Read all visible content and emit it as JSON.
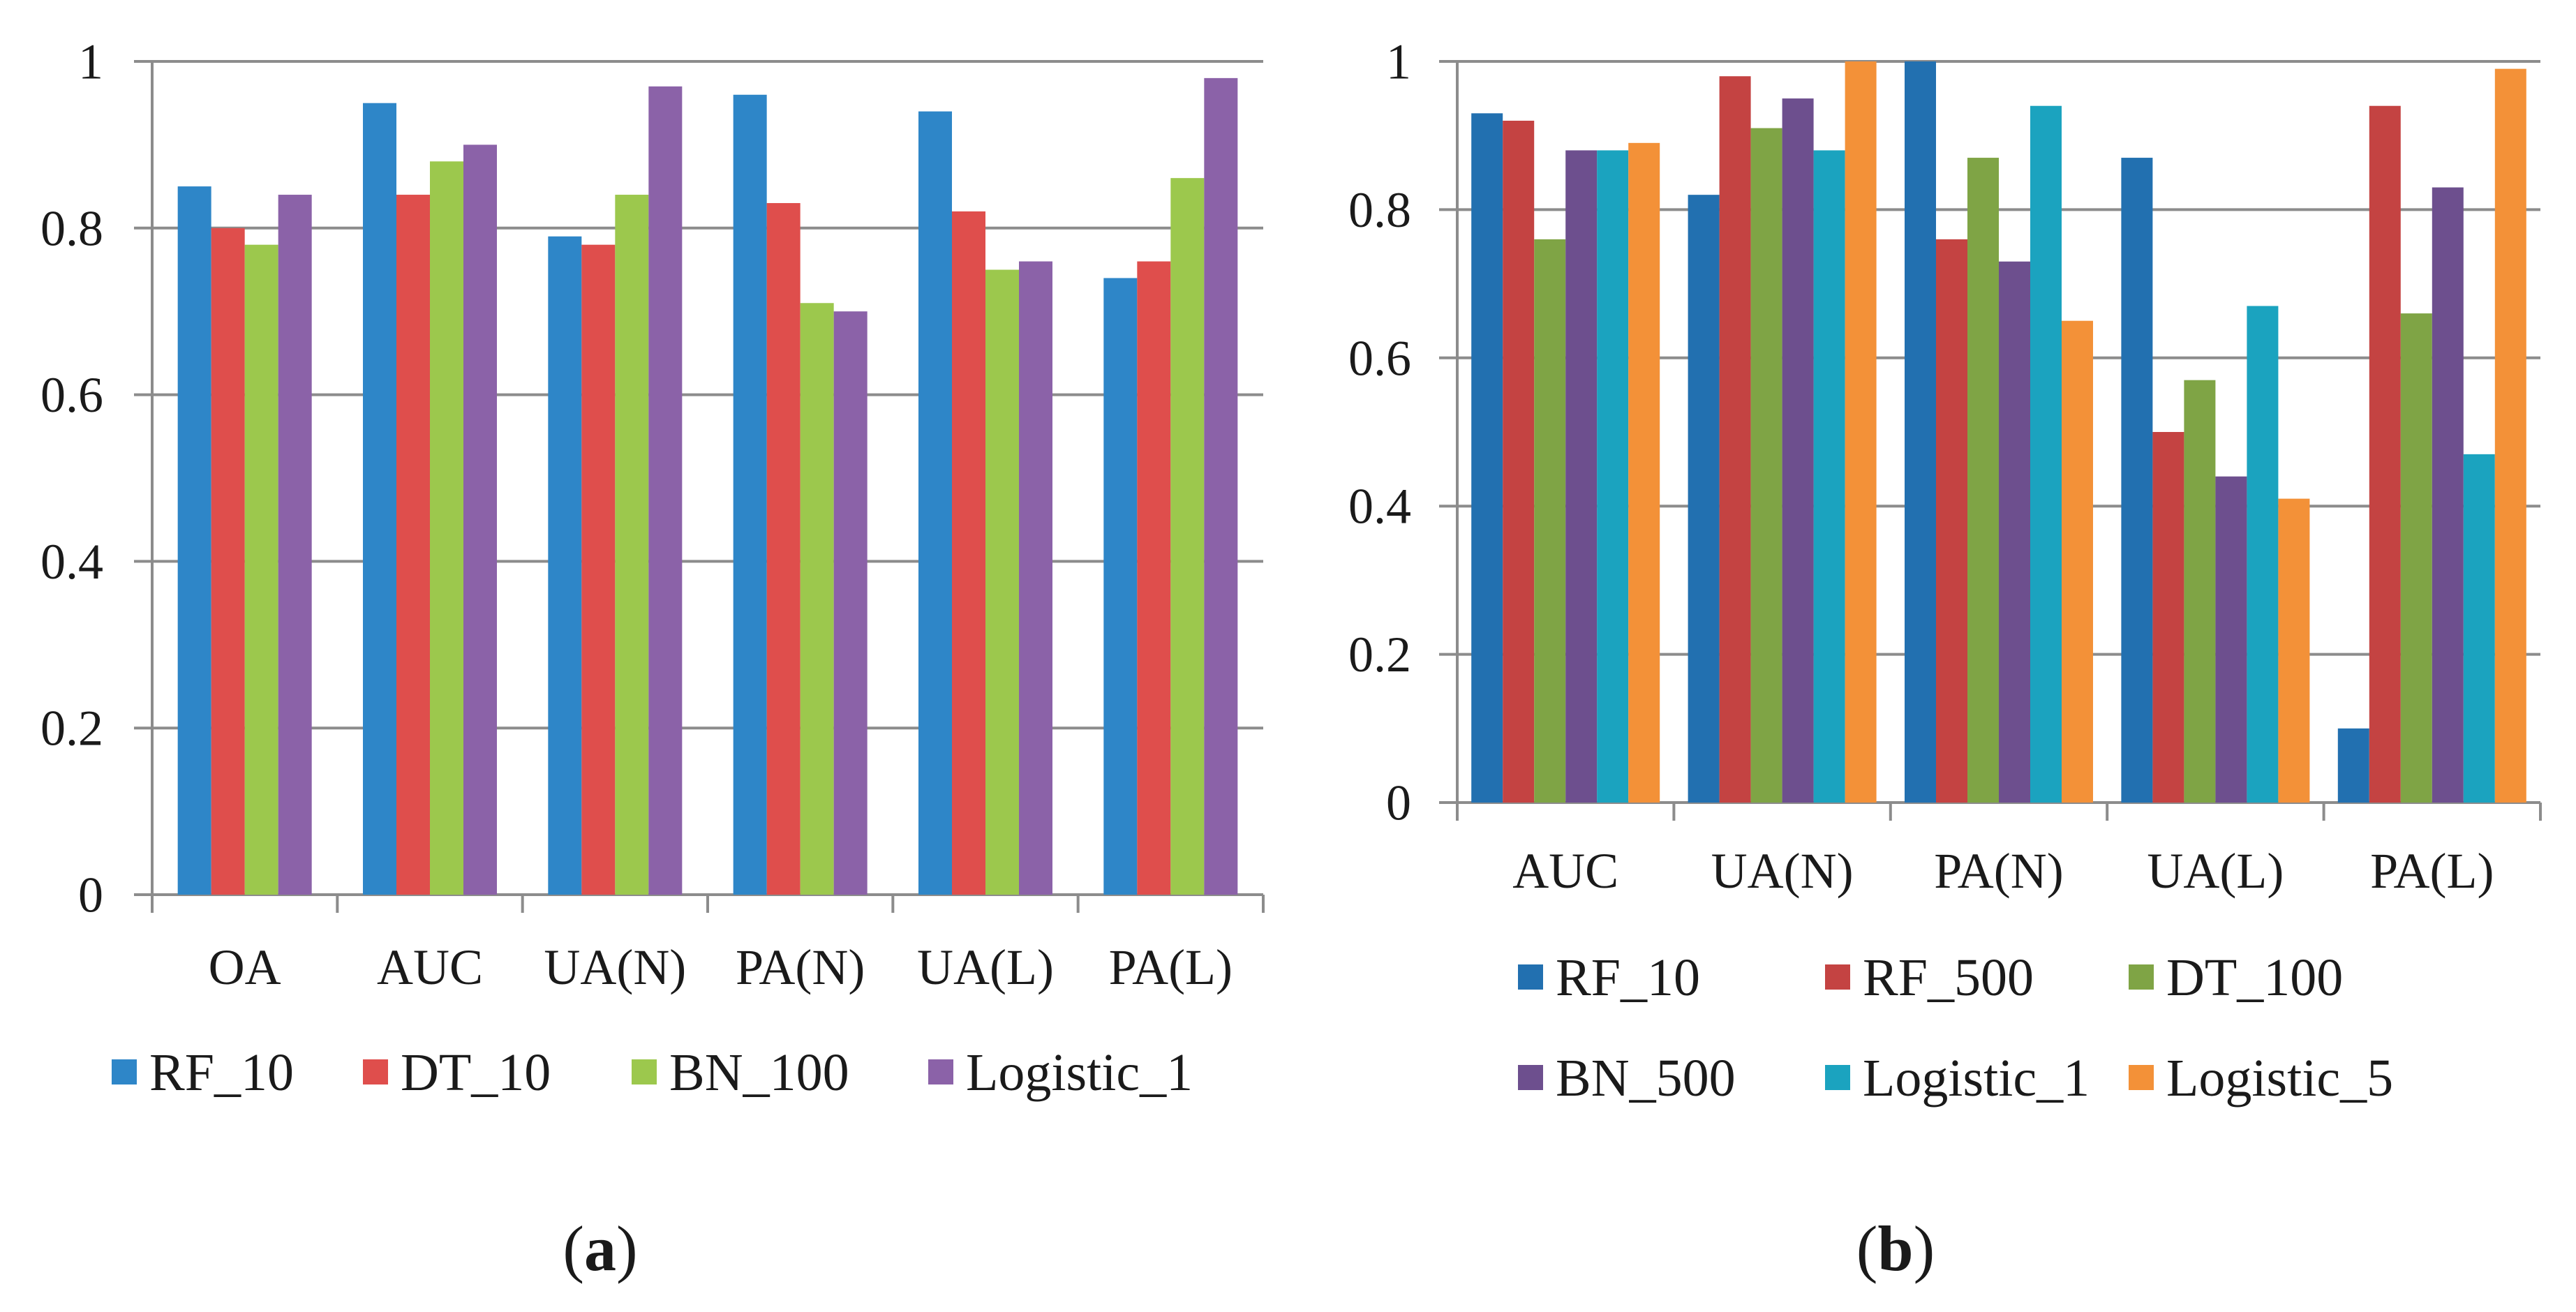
{
  "chart_data": [
    {
      "id": "a",
      "type": "bar",
      "panel_label": "a",
      "categories": [
        "OA",
        "AUC",
        "UA(N)",
        "PA(N)",
        "UA(L)",
        "PA(L)"
      ],
      "ylim": [
        0,
        1
      ],
      "yticks": [
        0,
        0.2,
        0.4,
        0.6,
        0.8,
        1
      ],
      "ytick_labels": [
        "0",
        "0.2",
        "0.4",
        "0.6",
        "0.8",
        "1"
      ],
      "grid": true,
      "legend_position": "bottom",
      "series": [
        {
          "name": "RF_10",
          "color": "#2e86c8",
          "values": [
            0.85,
            0.95,
            0.79,
            0.96,
            0.94,
            0.74
          ]
        },
        {
          "name": "DT_10",
          "color": "#df4e4c",
          "values": [
            0.8,
            0.84,
            0.78,
            0.83,
            0.82,
            0.76
          ]
        },
        {
          "name": "BN_100",
          "color": "#9cc84d",
          "values": [
            0.78,
            0.88,
            0.84,
            0.71,
            0.75,
            0.86
          ]
        },
        {
          "name": "Logistic_1",
          "color": "#8b62a8",
          "values": [
            0.84,
            0.9,
            0.97,
            0.7,
            0.76,
            0.98
          ]
        }
      ]
    },
    {
      "id": "b",
      "type": "bar",
      "panel_label": "b",
      "categories": [
        "AUC",
        "UA(N)",
        "PA(N)",
        "UA(L)",
        "PA(L)"
      ],
      "ylim": [
        0,
        1
      ],
      "yticks": [
        0,
        0.2,
        0.4,
        0.6,
        0.8,
        1
      ],
      "ytick_labels": [
        "0",
        "0.2",
        "0.4",
        "0.6",
        "0.8",
        "1"
      ],
      "grid": true,
      "legend_position": "bottom",
      "series": [
        {
          "name": "RF_10",
          "color": "#2270b0",
          "values": [
            0.93,
            0.82,
            1.0,
            0.87,
            0.1
          ]
        },
        {
          "name": "RF_500",
          "color": "#c44342",
          "values": [
            0.92,
            0.98,
            0.76,
            0.5,
            0.94
          ]
        },
        {
          "name": "DT_100",
          "color": "#7fa445",
          "values": [
            0.76,
            0.91,
            0.87,
            0.57,
            0.66
          ]
        },
        {
          "name": "BN_500",
          "color": "#6d4f8e",
          "values": [
            0.88,
            0.95,
            0.73,
            0.44,
            0.83
          ]
        },
        {
          "name": "Logistic_1",
          "color": "#1ba3bf",
          "values": [
            0.88,
            0.88,
            0.94,
            0.67,
            0.47
          ]
        },
        {
          "name": "Logistic_5",
          "color": "#f39138",
          "values": [
            0.89,
            1.0,
            0.65,
            0.41,
            0.99
          ]
        }
      ]
    }
  ]
}
